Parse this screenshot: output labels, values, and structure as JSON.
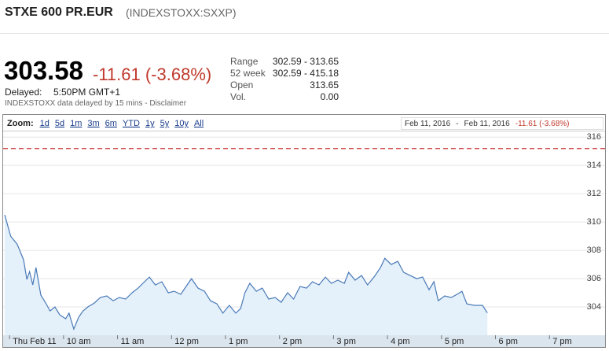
{
  "header": {
    "name": "STXE 600 PR.EUR",
    "ticker": "(INDEXSTOXX:SXXP)"
  },
  "quote": {
    "price": "303.58",
    "change": "-11.61 (-3.68%)",
    "delayed_label": "Delayed:",
    "delayed_time": "5:50PM GMT+1",
    "disclaimer_text": "INDEXSTOXX data delayed by 15 mins -",
    "disclaimer_link": "Disclaimer"
  },
  "stats": [
    {
      "label": "Range",
      "value": "302.59 - 313.65"
    },
    {
      "label": "52 week",
      "value": "302.59 - 415.18"
    },
    {
      "label": "Open",
      "value": "313.65"
    },
    {
      "label": "Vol.",
      "value": "0.00"
    }
  ],
  "toolbar": {
    "zoom_label": "Zoom:",
    "zoom_options": [
      "1d",
      "5d",
      "1m",
      "3m",
      "6m",
      "YTD",
      "1y",
      "5y",
      "10y",
      "All"
    ],
    "range_start": "Feb 11, 2016",
    "range_separator": "-",
    "range_end": "Feb 11, 2016",
    "range_change": "-11.61 (-3.68%)"
  },
  "chart_data": {
    "type": "line",
    "color": "#4a7ab8",
    "fill": "#e4f0fa",
    "grid": true,
    "reference_line": 315.19,
    "reference_color": "#cc3333",
    "xlim": [
      8.91,
      20.03
    ],
    "ylim": [
      302,
      316.4
    ],
    "yticks": [
      304,
      306,
      308,
      310,
      312,
      314,
      316
    ],
    "xticks": [
      {
        "value": 9,
        "label": "Thu Feb 11"
      },
      {
        "value": 10,
        "label": "10 am"
      },
      {
        "value": 11,
        "label": "11 am"
      },
      {
        "value": 12,
        "label": "12 pm"
      },
      {
        "value": 13,
        "label": "1 pm"
      },
      {
        "value": 14,
        "label": "2 pm"
      },
      {
        "value": 15,
        "label": "3 pm"
      },
      {
        "value": 16,
        "label": "4 pm"
      },
      {
        "value": 17,
        "label": "5 pm"
      },
      {
        "value": 18,
        "label": "6 pm"
      },
      {
        "value": 19,
        "label": "7 pm"
      }
    ],
    "x": [
      8.91,
      9.02,
      9.14,
      9.26,
      9.32,
      9.37,
      9.43,
      9.49,
      9.58,
      9.67,
      9.75,
      9.84,
      9.93,
      10.04,
      10.1,
      10.19,
      10.28,
      10.36,
      10.45,
      10.57,
      10.68,
      10.8,
      10.92,
      11.03,
      11.15,
      11.27,
      11.38,
      11.5,
      11.59,
      11.7,
      11.82,
      11.94,
      12.05,
      12.17,
      12.29,
      12.37,
      12.49,
      12.61,
      12.72,
      12.84,
      12.95,
      13.07,
      13.19,
      13.28,
      13.36,
      13.45,
      13.57,
      13.68,
      13.8,
      13.92,
      14.03,
      14.15,
      14.26,
      14.38,
      14.5,
      14.61,
      14.73,
      14.85,
      14.96,
      15.08,
      15.2,
      15.28,
      15.4,
      15.52,
      15.63,
      15.75,
      15.87,
      15.95,
      16.07,
      16.19,
      16.3,
      16.42,
      16.54,
      16.65,
      16.77,
      16.86,
      16.94,
      17.06,
      17.18,
      17.29,
      17.38,
      17.47,
      17.61,
      17.76,
      17.85
    ],
    "values": [
      310.5,
      309.0,
      308.44,
      307.33,
      305.94,
      306.5,
      305.56,
      306.78,
      304.83,
      304.28,
      303.72,
      304.0,
      303.44,
      303.17,
      303.56,
      302.44,
      303.28,
      303.72,
      304.0,
      304.28,
      304.67,
      304.78,
      304.44,
      304.67,
      304.56,
      305.0,
      305.33,
      305.78,
      306.11,
      305.56,
      305.78,
      305.0,
      305.11,
      304.89,
      305.56,
      306.0,
      305.33,
      305.11,
      304.44,
      304.22,
      303.56,
      304.11,
      303.56,
      303.89,
      305.0,
      305.67,
      305.11,
      305.33,
      304.56,
      304.67,
      304.33,
      305.0,
      304.56,
      305.44,
      305.33,
      305.78,
      305.56,
      306.11,
      305.67,
      305.89,
      305.67,
      306.44,
      305.89,
      306.22,
      305.56,
      306.11,
      306.78,
      307.44,
      307.0,
      307.22,
      306.44,
      306.22,
      306.0,
      306.11,
      305.22,
      305.78,
      304.44,
      304.78,
      304.67,
      304.89,
      305.11,
      304.22,
      304.11,
      304.11,
      303.58
    ]
  }
}
